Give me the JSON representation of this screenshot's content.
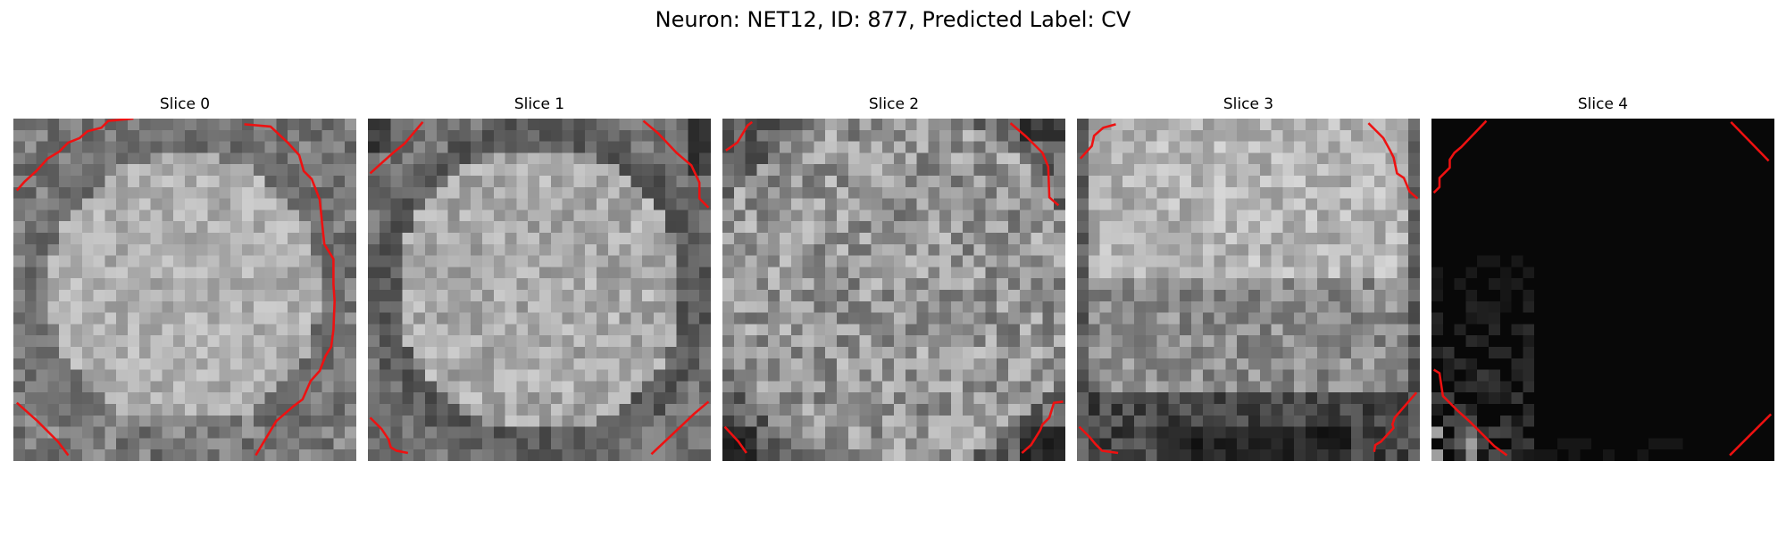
{
  "figure": {
    "title": "Neuron: NET12, ID: 877, Predicted Label: CV"
  },
  "contour_color": "#ee1111",
  "panels": [
    {
      "title": "Slice 0",
      "image": "grayscale pixelated microscopy patch, bright textured neuron body filling most of the tile",
      "seed": 11
    },
    {
      "title": "Slice 1",
      "image": "grayscale pixelated microscopy patch, bright neuron body with darker ring",
      "seed": 23
    },
    {
      "title": "Slice 2",
      "image": "grayscale pixelated microscopy patch, mid-grey noisy texture",
      "seed": 37
    },
    {
      "title": "Slice 3",
      "image": "grayscale pixelated microscopy patch, bright upper region, darker lower band",
      "seed": 53
    },
    {
      "title": "Slice 4",
      "image": "mostly black patch with faint grey pixels in lower-left corner",
      "seed": 71
    }
  ]
}
